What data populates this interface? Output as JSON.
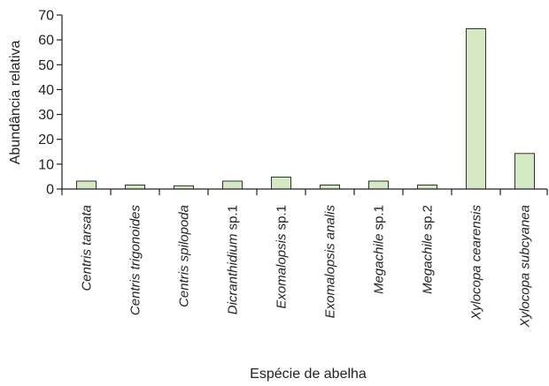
{
  "chart_data": {
    "type": "bar",
    "xlabel": "Espécie de abelha",
    "ylabel": "Abundância relativa",
    "ylim": [
      0,
      70
    ],
    "yticks": [
      0,
      10,
      20,
      30,
      40,
      50,
      60,
      70
    ],
    "grid": false,
    "bar_color": "#d5e8c4",
    "bar_edge_color": "#333333",
    "categories": [
      {
        "italic": "Centris tarsata",
        "suffix": ""
      },
      {
        "italic": "Centris trigonoides",
        "suffix": ""
      },
      {
        "italic": "Centris spilopoda",
        "suffix": ""
      },
      {
        "italic": "Dicranthidium",
        "suffix": " sp.1"
      },
      {
        "italic": "Exomalopsis",
        "suffix": " sp.1"
      },
      {
        "italic": "Exomalopsis analis",
        "suffix": ""
      },
      {
        "italic": "Megachile",
        "suffix": " sp.1"
      },
      {
        "italic": "Megachile",
        "suffix": " sp.2"
      },
      {
        "italic": "Xylocopa cearensis",
        "suffix": ""
      },
      {
        "italic": "Xylocopa subcyanea",
        "suffix": ""
      }
    ],
    "values": [
      3.2,
      1.6,
      1.3,
      3.2,
      4.8,
      1.6,
      3.2,
      1.6,
      64.5,
      14.3
    ]
  }
}
